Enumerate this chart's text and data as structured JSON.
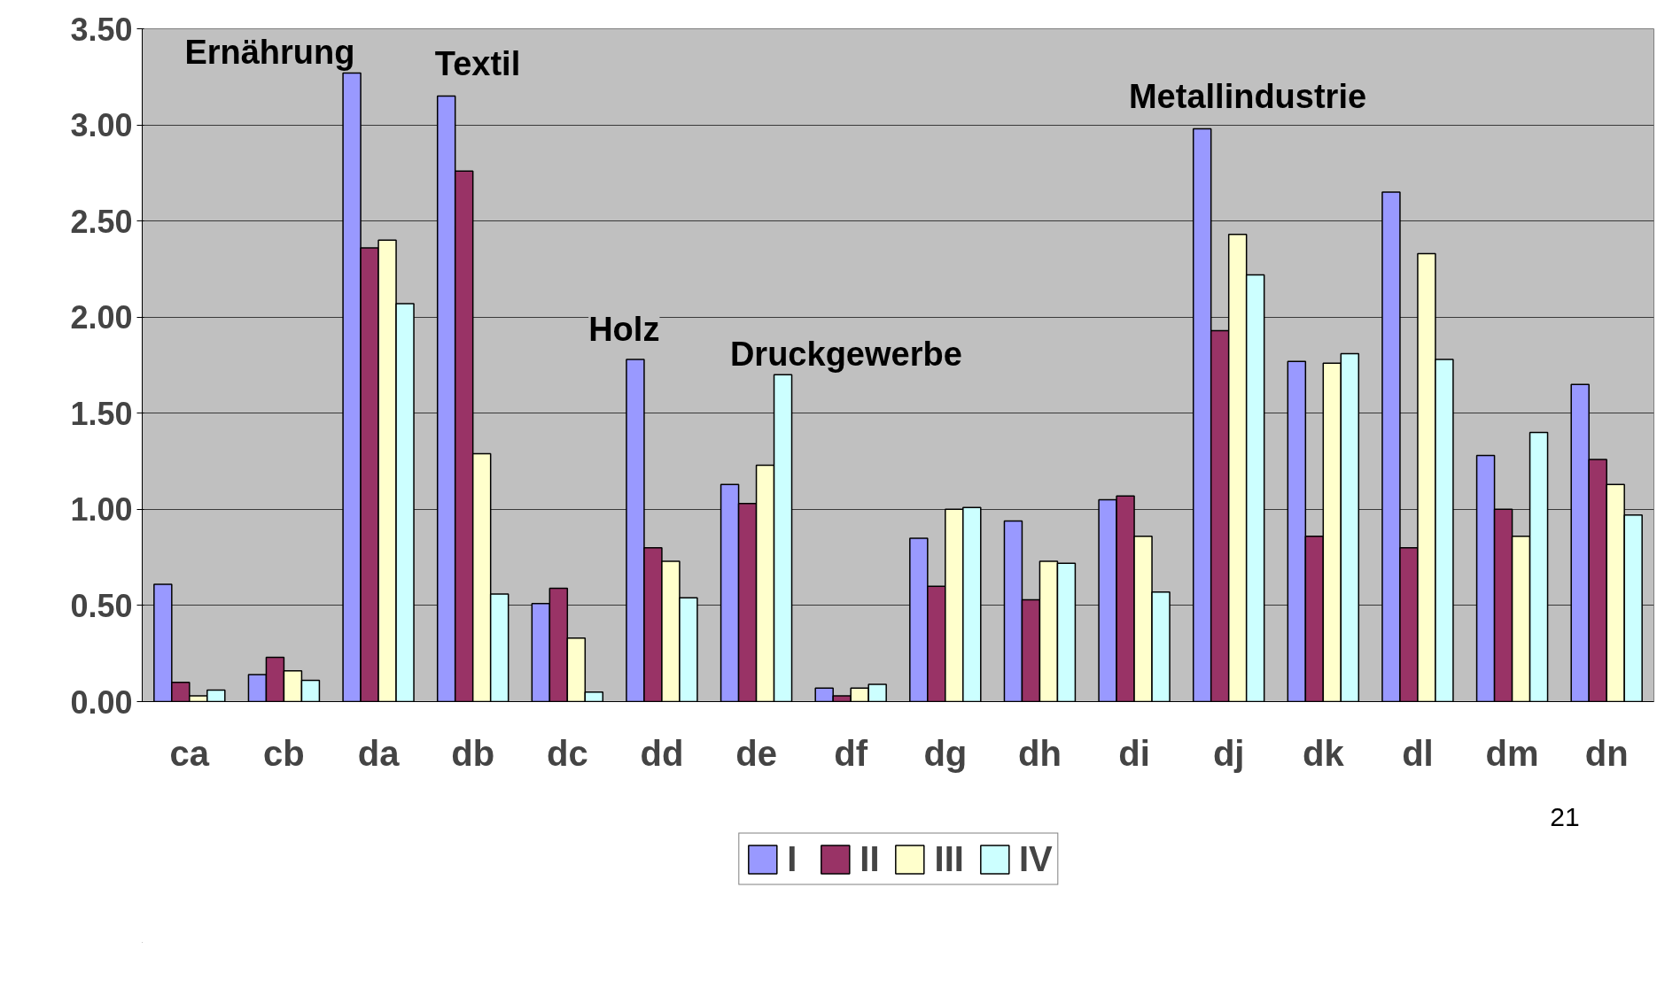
{
  "chart_data": {
    "type": "bar",
    "categories": [
      "ca",
      "cb",
      "da",
      "db",
      "dc",
      "dd",
      "de",
      "df",
      "dg",
      "dh",
      "di",
      "dj",
      "dk",
      "dl",
      "dm",
      "dn"
    ],
    "series": [
      {
        "name": "I",
        "color": "#9999ff",
        "values": [
          0.61,
          0.14,
          3.27,
          3.15,
          0.51,
          1.78,
          1.13,
          0.07,
          0.85,
          0.94,
          1.05,
          2.98,
          1.77,
          2.65,
          1.28,
          1.65
        ]
      },
      {
        "name": "II",
        "color": "#993366",
        "values": [
          0.1,
          0.23,
          2.36,
          2.76,
          0.59,
          0.8,
          1.03,
          0.03,
          0.6,
          0.53,
          1.07,
          1.93,
          0.86,
          0.8,
          1.0,
          1.26
        ]
      },
      {
        "name": "III",
        "color": "#ffffcc",
        "values": [
          0.03,
          0.16,
          2.4,
          1.29,
          0.33,
          0.73,
          1.23,
          0.07,
          1.0,
          0.73,
          0.86,
          2.43,
          1.76,
          2.33,
          0.86,
          1.13
        ]
      },
      {
        "name": "IV",
        "color": "#ccffff",
        "values": [
          0.06,
          0.11,
          2.07,
          0.56,
          0.05,
          0.54,
          1.7,
          0.09,
          1.01,
          0.72,
          0.57,
          2.22,
          1.81,
          1.78,
          1.4,
          0.97
        ]
      }
    ],
    "ylim": [
      0,
      3.5
    ],
    "yticks": [
      {
        "value": 0,
        "label": "0.00"
      },
      {
        "value": 0.5,
        "label": "0.50"
      },
      {
        "value": 1,
        "label": "1.00"
      },
      {
        "value": 1.5,
        "label": "1.50"
      },
      {
        "value": 2,
        "label": "2.00"
      },
      {
        "value": 2.5,
        "label": "2.50"
      },
      {
        "value": 3,
        "label": "3.00"
      },
      {
        "value": 3.5,
        "label": "3.50"
      }
    ],
    "grid": "y",
    "legend": "bottom",
    "annotations": [
      "Ernährung",
      "Textil",
      "Holz",
      "Druckgewerbe",
      "Metallindustrie",
      "21"
    ]
  }
}
